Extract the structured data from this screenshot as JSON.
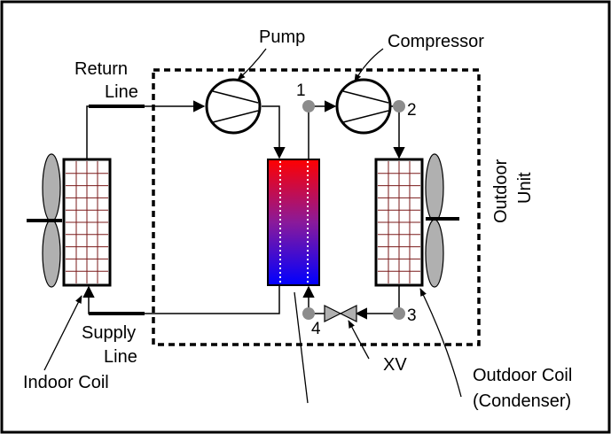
{
  "labels": {
    "pump": "Pump",
    "compressor": "Compressor",
    "return_line_1": "Return",
    "return_line_2": "Line",
    "supply_line_1": "Supply",
    "supply_line_2": "Line",
    "indoor_coil": "Indoor Coil",
    "outdoor_unit_1": "Outdoor",
    "outdoor_unit_2": "Unit",
    "outdoor_coil_1": "Outdoor Coil",
    "outdoor_coil_2": "(Condenser)",
    "xv": "XV",
    "state_1": "1",
    "state_2": "2",
    "state_3": "3",
    "state_4": "4"
  },
  "colors": {
    "line": "#000000",
    "coil_grid": "#7a1a1a",
    "fan_blade": "#b0b0b0",
    "state_point": "#8c8c8c",
    "hx_hot": "#ff0000",
    "hx_cold": "#0000ff"
  }
}
